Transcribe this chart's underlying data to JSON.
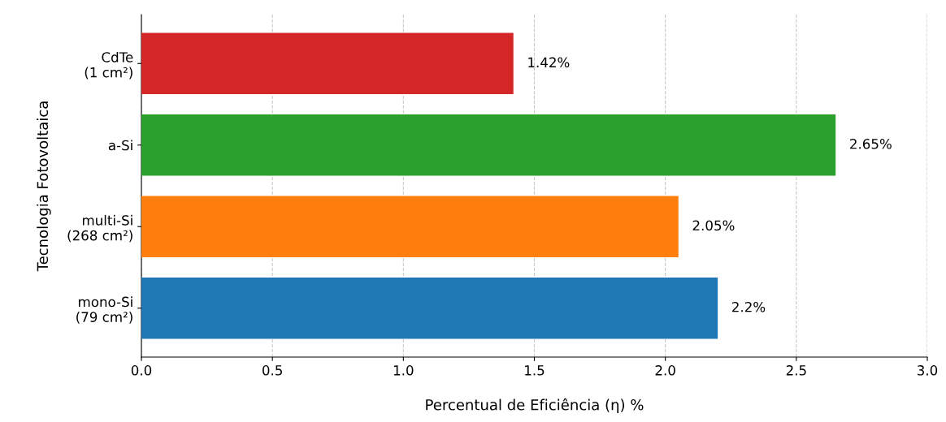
{
  "chart_data": {
    "type": "bar",
    "orientation": "horizontal",
    "xlabel": "Percentual de Eficiência (η) %",
    "ylabel": "Tecnologia Fotovoltaica",
    "categories": [
      "CdTe\n(1 cm²)",
      "a-Si",
      "multi-Si\n(268 cm²)",
      "mono-Si\n(79 cm²)"
    ],
    "values": [
      1.42,
      2.65,
      2.05,
      2.2
    ],
    "colors": [
      "#d62728",
      "#2ca02c",
      "#ff7f0e",
      "#1f77b4"
    ],
    "value_labels": [
      "1.42%",
      "2.65%",
      "2.05%",
      "2.2%"
    ],
    "xlim": [
      0,
      3
    ],
    "xticks": [
      {
        "value": 0,
        "label": "0.0"
      },
      0.5,
      {
        "value": 1,
        "label": "1.0"
      },
      1.5,
      {
        "value": 2,
        "label": "2.0"
      },
      2.5,
      {
        "value": 3,
        "label": "3.0"
      }
    ],
    "grid": "x"
  }
}
